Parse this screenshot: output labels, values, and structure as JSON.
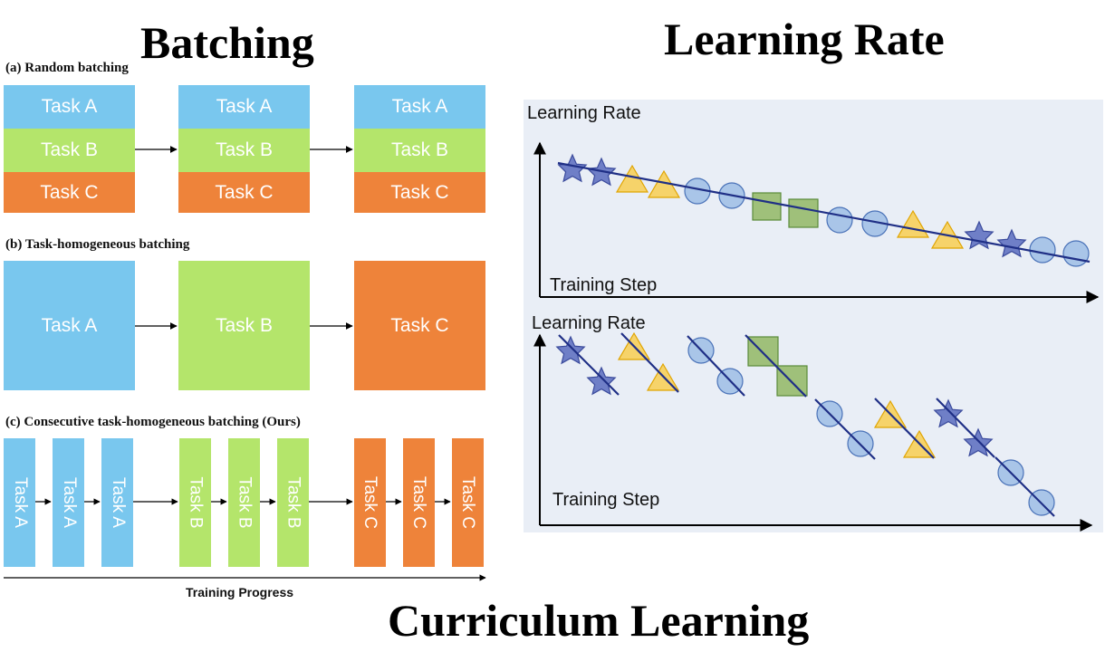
{
  "titles": {
    "batching": "Batching",
    "learning_rate": "Learning Rate",
    "curriculum": "Curriculum Learning"
  },
  "batching": {
    "random": {
      "label": "(a) Random batching",
      "tasks": [
        "Task A",
        "Task B",
        "Task C"
      ]
    },
    "homogeneous": {
      "label": "(b) Task-homogeneous batching",
      "tasks": [
        "Task A",
        "Task B",
        "Task C"
      ]
    },
    "consecutive": {
      "label": "(c) Consecutive task-homogeneous batching (Ours)",
      "tasks": [
        "Task A",
        "Task A",
        "Task A",
        "Task B",
        "Task B",
        "Task B",
        "Task C",
        "Task C",
        "Task C"
      ]
    },
    "progress_label": "Training Progress"
  },
  "lr_charts": {
    "top": {
      "ylabel": "Learning Rate",
      "xlabel": "Training Step"
    },
    "bottom": {
      "ylabel": "Learning Rate",
      "xlabel": "Training Step"
    }
  },
  "colors": {
    "task_a": "#79c7ee",
    "task_b": "#b4e56b",
    "task_c": "#ee833a",
    "panel_bg": "#e9eef6",
    "line": "#1f2f86"
  }
}
